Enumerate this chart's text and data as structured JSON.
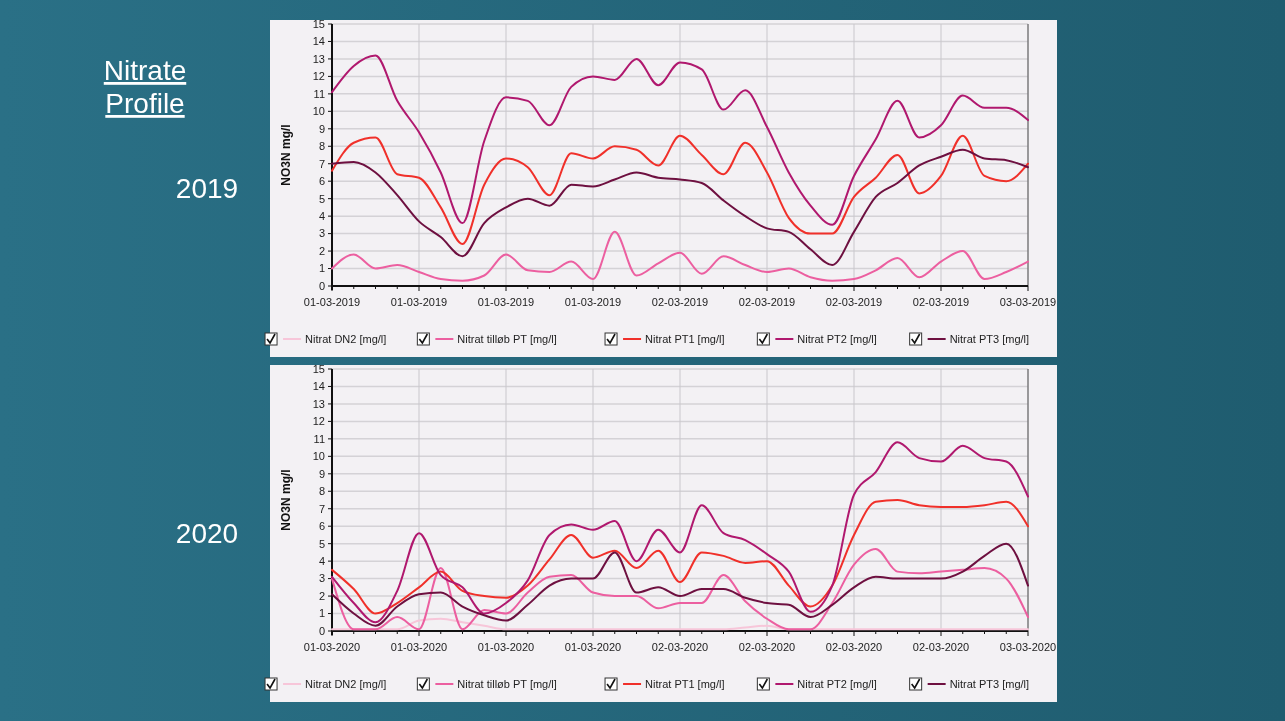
{
  "chart_data": [
    {
      "type": "line",
      "title": "Nitrate Profile",
      "subtitle": "2019",
      "ylabel": "NO3N mg/l",
      "categories": [
        "01-03-2019",
        null,
        null,
        null,
        "01-03-2019",
        null,
        null,
        null,
        "01-03-2019",
        null,
        null,
        null,
        "01-03-2019",
        null,
        null,
        null,
        "02-03-2019",
        null,
        null,
        null,
        "02-03-2019",
        null,
        null,
        null,
        "02-03-2019",
        null,
        null,
        null,
        "02-03-2019",
        null,
        null,
        null,
        "03-03-2019"
      ],
      "ylim": [
        0,
        15
      ],
      "yticks": [
        0,
        1,
        2,
        3,
        4,
        5,
        6,
        7,
        8,
        9,
        10,
        11,
        12,
        13,
        14,
        15
      ],
      "grid": true,
      "legend": "bottom",
      "series": [
        {
          "name": "Nitrat DN2 [mg/l]",
          "color": "#f7c6d9",
          "values": [
            null,
            null,
            null,
            null,
            null,
            null,
            null,
            null,
            null,
            null,
            null,
            null,
            null,
            null,
            null,
            null,
            null,
            null,
            null,
            null,
            null,
            null,
            null,
            null,
            null,
            null,
            null,
            null,
            null,
            null,
            null,
            null,
            null
          ]
        },
        {
          "name": "Nitrat tilløb PT [mg/l]",
          "color": "#ec5fa0",
          "values": [
            1.0,
            1.8,
            1.0,
            1.2,
            0.8,
            0.4,
            0.3,
            0.6,
            1.8,
            0.9,
            0.8,
            1.4,
            0.4,
            3.1,
            0.6,
            1.3,
            1.9,
            0.7,
            1.7,
            1.2,
            0.8,
            1.0,
            0.5,
            0.3,
            0.4,
            0.9,
            1.6,
            0.5,
            1.4,
            2.0,
            0.4,
            0.8,
            1.4
          ]
        },
        {
          "name": "Nitrat PT1 [mg/l]",
          "color": "#f0302a",
          "values": [
            6.6,
            8.2,
            8.5,
            6.4,
            6.2,
            4.5,
            2.4,
            5.8,
            7.3,
            6.8,
            5.2,
            7.6,
            7.3,
            8.0,
            7.8,
            6.9,
            8.6,
            7.5,
            6.4,
            8.2,
            6.5,
            3.9,
            3.0,
            3.0,
            5.1,
            6.2,
            7.5,
            5.3,
            6.3,
            8.6,
            6.3,
            6.0,
            7.0
          ]
        },
        {
          "name": "Nitrat PT2 [mg/l]",
          "color": "#b0186e",
          "values": [
            11.1,
            12.6,
            13.2,
            10.6,
            8.8,
            6.5,
            3.6,
            8.3,
            10.8,
            10.6,
            9.2,
            11.4,
            12.0,
            11.8,
            13.0,
            11.5,
            12.8,
            12.4,
            10.1,
            11.2,
            9.1,
            6.5,
            4.6,
            3.5,
            6.3,
            8.4,
            10.6,
            8.5,
            9.2,
            10.9,
            10.2,
            10.2,
            9.5
          ]
        },
        {
          "name": "Nitrat PT3 [mg/l]",
          "color": "#6e1040",
          "values": [
            7.0,
            7.1,
            6.5,
            5.2,
            3.7,
            2.8,
            1.7,
            3.6,
            4.5,
            5.0,
            4.6,
            5.8,
            5.7,
            6.1,
            6.5,
            6.2,
            6.1,
            5.9,
            4.9,
            4.0,
            3.3,
            3.1,
            2.1,
            1.2,
            3.1,
            5.1,
            5.9,
            6.9,
            7.4,
            7.8,
            7.3,
            7.2,
            6.8
          ]
        }
      ]
    },
    {
      "type": "line",
      "subtitle": "2020",
      "ylabel": "NO3N mg/l",
      "categories": [
        "01-03-2020",
        null,
        null,
        null,
        "01-03-2020",
        null,
        null,
        null,
        "01-03-2020",
        null,
        null,
        null,
        "01-03-2020",
        null,
        null,
        null,
        "02-03-2020",
        null,
        null,
        null,
        "02-03-2020",
        null,
        null,
        null,
        "02-03-2020",
        null,
        null,
        null,
        "02-03-2020",
        null,
        null,
        null,
        "03-03-2020"
      ],
      "ylim": [
        0,
        15
      ],
      "yticks": [
        0,
        1,
        2,
        3,
        4,
        5,
        6,
        7,
        8,
        9,
        10,
        11,
        12,
        13,
        14,
        15
      ],
      "grid": true,
      "legend": "bottom",
      "series": [
        {
          "name": "Nitrat DN2 [mg/l]",
          "color": "#f7c6d9",
          "values": [
            0.1,
            0.1,
            0.1,
            0.1,
            0.6,
            0.7,
            0.5,
            0.3,
            0.1,
            0.1,
            0.1,
            0.1,
            0.1,
            0.1,
            0.1,
            0.1,
            0.1,
            0.1,
            0.1,
            0.2,
            0.3,
            0.1,
            0.1,
            0.1,
            0.1,
            0.1,
            0.1,
            0.1,
            0.1,
            0.1,
            0.1,
            0.1,
            0.1
          ]
        },
        {
          "name": "Nitrat tilløb PT [mg/l]",
          "color": "#ec5fa0",
          "values": [
            3.0,
            0.1,
            0.1,
            0.8,
            0.1,
            3.6,
            0.1,
            1.2,
            1.0,
            2.2,
            3.1,
            3.2,
            2.2,
            2.0,
            2.0,
            1.3,
            1.6,
            1.6,
            3.2,
            1.7,
            0.7,
            0.1,
            0.1,
            1.6,
            3.8,
            4.7,
            3.4,
            3.3,
            3.4,
            3.5,
            3.6,
            3.0,
            0.8
          ]
        },
        {
          "name": "Nitrat PT1 [mg/l]",
          "color": "#f0302a",
          "values": [
            3.5,
            2.4,
            1.0,
            1.6,
            2.5,
            3.4,
            2.3,
            2.0,
            1.9,
            2.6,
            4.1,
            5.5,
            4.2,
            4.6,
            3.6,
            4.6,
            2.8,
            4.5,
            4.3,
            3.9,
            4.0,
            2.6,
            1.4,
            2.6,
            5.5,
            7.4,
            7.5,
            7.2,
            7.1,
            7.1,
            7.2,
            7.4,
            6.0
          ]
        },
        {
          "name": "Nitrat PT2 [mg/l]",
          "color": "#b0186e",
          "values": [
            3.1,
            1.6,
            0.5,
            2.3,
            5.6,
            3.2,
            2.5,
            1.0,
            1.6,
            2.9,
            5.5,
            6.1,
            5.8,
            6.3,
            4.0,
            5.8,
            4.5,
            7.2,
            5.6,
            5.2,
            4.4,
            3.4,
            1.1,
            2.6,
            7.8,
            9.1,
            10.8,
            9.9,
            9.7,
            10.6,
            9.9,
            9.7,
            7.7
          ]
        },
        {
          "name": "Nitrat PT3 [mg/l]",
          "color": "#6e1040",
          "values": [
            2.1,
            1.0,
            0.3,
            1.4,
            2.1,
            2.2,
            1.4,
            0.9,
            0.6,
            1.5,
            2.6,
            3.0,
            3.0,
            4.5,
            2.2,
            2.5,
            2.0,
            2.4,
            2.4,
            1.9,
            1.6,
            1.5,
            0.8,
            1.5,
            2.5,
            3.1,
            3.0,
            3.0,
            3.0,
            3.4,
            4.3,
            5.0,
            2.6
          ]
        }
      ]
    }
  ]
}
